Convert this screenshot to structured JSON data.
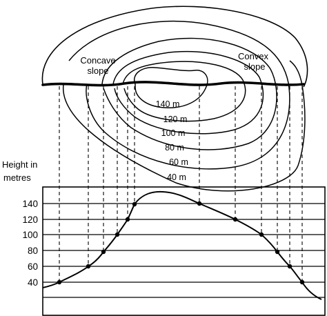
{
  "labels": {
    "concave_line1": "Concave",
    "concave_line2": "slope",
    "convex_line1": "Convex",
    "convex_line2": "slope",
    "axis_line1": "Height in",
    "axis_line2": "metres"
  },
  "contours": [
    {
      "label": "140 m"
    },
    {
      "label": "120 m"
    },
    {
      "label": "100 m"
    },
    {
      "label": "80 m"
    },
    {
      "label": "60 m"
    },
    {
      "label": "40 m"
    }
  ],
  "height_ticks": [
    "140",
    "120",
    "100",
    "80",
    "60",
    "40"
  ],
  "colors": {
    "ink": "#000000",
    "background": "#ffffff"
  }
}
